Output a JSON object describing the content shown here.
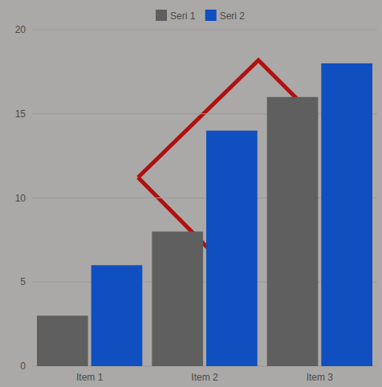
{
  "chart_data": {
    "type": "bar",
    "categories": [
      "Item 1",
      "Item 2",
      "Item 3"
    ],
    "series": [
      {
        "name": "Seri 1",
        "color": "#5f5f5f",
        "values": [
          3,
          8,
          16
        ]
      },
      {
        "name": "Seri 2",
        "color": "#0f4fbf",
        "values": [
          6,
          14,
          18
        ]
      }
    ],
    "ylim": [
      0,
      20
    ],
    "yticks": [
      0,
      5,
      10,
      15,
      20
    ],
    "grid": true,
    "legend": "top"
  }
}
